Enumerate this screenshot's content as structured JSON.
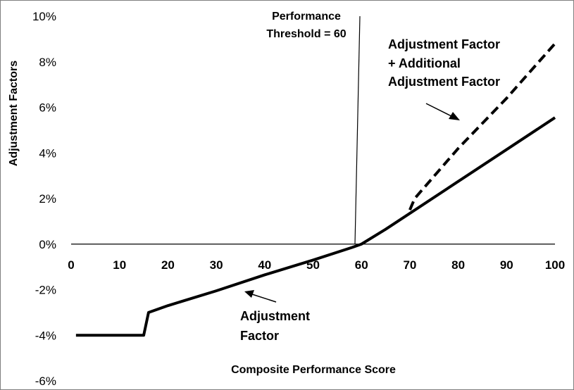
{
  "chart_data": {
    "type": "line",
    "xlabel": "Composite Performance Score",
    "ylabel": "Adjustment Factors",
    "xlim": [
      0,
      100
    ],
    "ylim": [
      -6,
      10
    ],
    "x_ticks": [
      "0",
      "10",
      "20",
      "30",
      "40",
      "50",
      "60",
      "70",
      "80",
      "90",
      "100"
    ],
    "y_ticks": [
      "10%",
      "8%",
      "6%",
      "4%",
      "2%",
      "0%",
      "-2%",
      "-4%",
      "-6%"
    ],
    "y_tick_values": [
      10,
      8,
      6,
      4,
      2,
      0,
      -2,
      -4,
      -6
    ],
    "series": [
      {
        "name": "Adjustment Factor",
        "style": "solid",
        "x": [
          1,
          15,
          16,
          20,
          30,
          40,
          50,
          58,
          60,
          65,
          70,
          80,
          90,
          100
        ],
        "y": [
          -4,
          -4,
          -3,
          -2.7,
          -2.05,
          -1.35,
          -0.7,
          -0.15,
          0,
          0.65,
          1.35,
          2.75,
          4.15,
          5.55
        ]
      },
      {
        "name": "Adjustment Factor + Additional Adjustment Factor",
        "style": "dashed",
        "x": [
          70,
          71,
          80,
          90,
          100
        ],
        "y": [
          1.5,
          2.0,
          4.2,
          6.4,
          8.8
        ]
      }
    ],
    "annotations": {
      "threshold": [
        "Performance",
        "Threshold = 60"
      ],
      "additional": [
        "Adjustment Factor",
        "+ Additional",
        "Adjustment Factor"
      ],
      "base": [
        "Adjustment",
        "Factor"
      ]
    },
    "colors": {
      "line": "#000000",
      "zero_axis": "#000000",
      "border": "#7f7f7f"
    }
  }
}
